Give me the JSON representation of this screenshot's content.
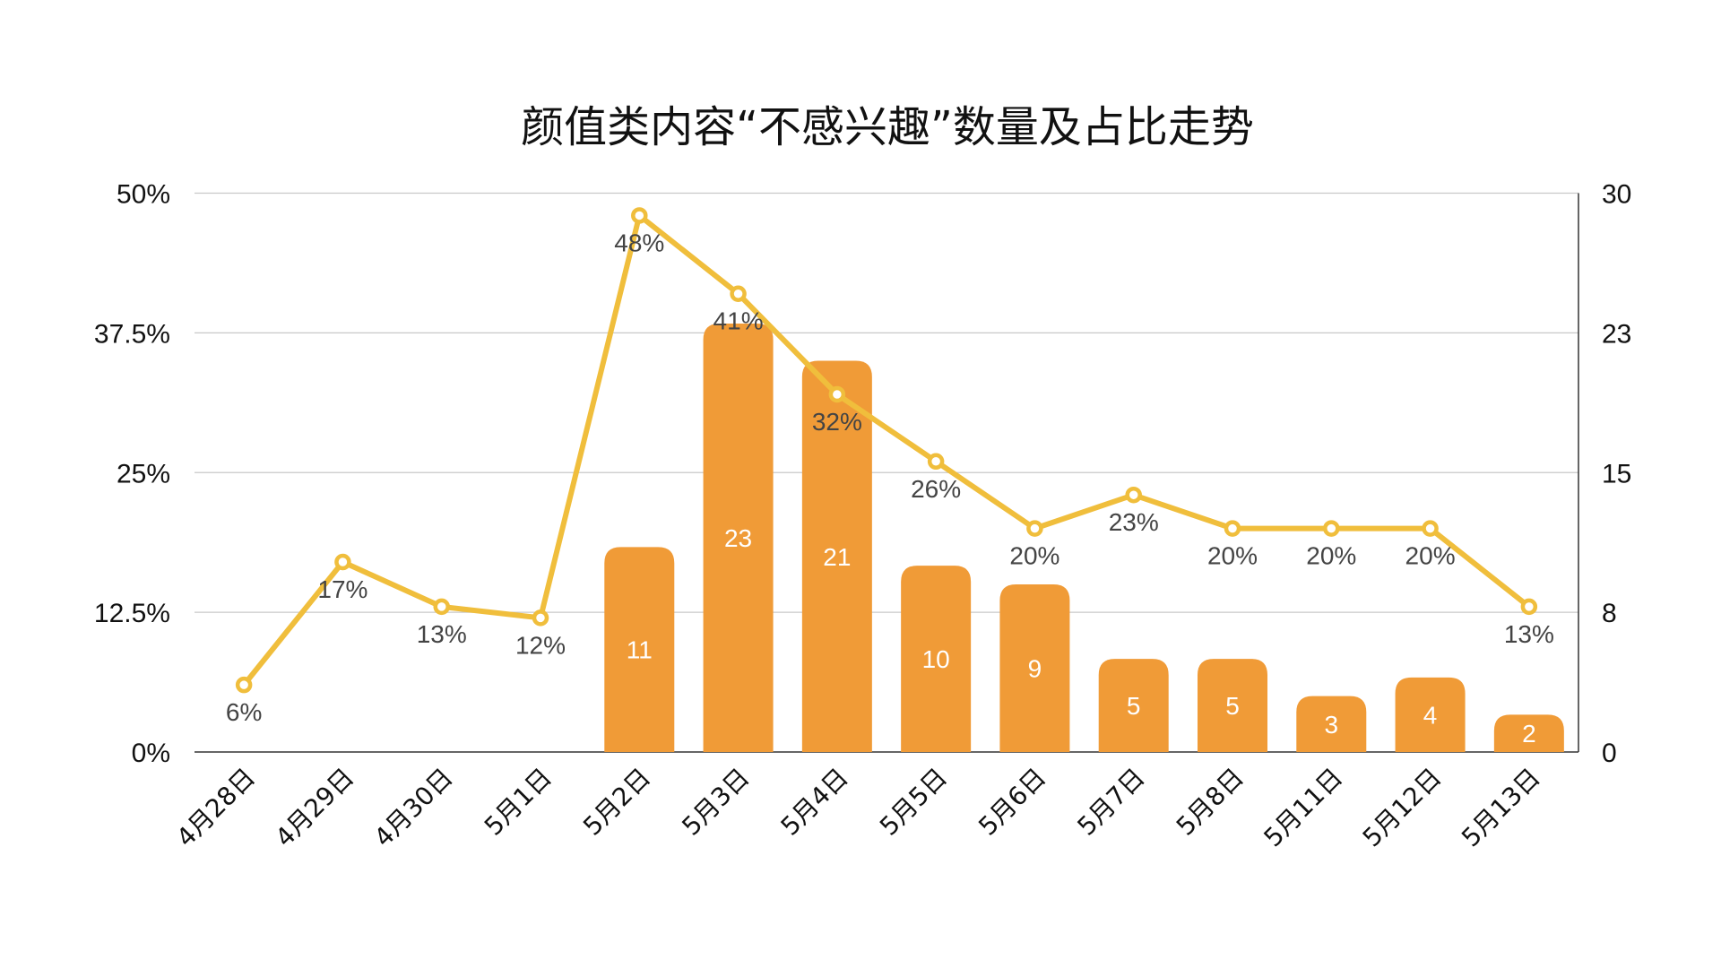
{
  "chart_data": {
    "type": "bar+line",
    "title": "颜值类内容“不感兴趣”数量及占比走势",
    "categories": [
      "4月28日",
      "4月29日",
      "4月30日",
      "5月1日",
      "5月2日",
      "5月3日",
      "5月4日",
      "5月5日",
      "5月6日",
      "5月7日",
      "5月8日",
      "5月11日",
      "5月12日",
      "5月13日"
    ],
    "series": [
      {
        "type": "bar",
        "axis": "right",
        "values": [
          0,
          0,
          0,
          0,
          11,
          23,
          21,
          10,
          9,
          5,
          5,
          3,
          4,
          2
        ],
        "labels": [
          "",
          "",
          "",
          "",
          "11",
          "23",
          "21",
          "10",
          "9",
          "5",
          "5",
          "3",
          "4",
          "2"
        ]
      },
      {
        "type": "line",
        "axis": "left",
        "values": [
          6,
          17,
          13,
          12,
          48,
          41,
          32,
          26,
          20,
          23,
          20,
          20,
          20,
          13
        ],
        "labels": [
          "6%",
          "17%",
          "13%",
          "12%",
          "48%",
          "41%",
          "32%",
          "26%",
          "20%",
          "23%",
          "20%",
          "20%",
          "20%",
          "13%"
        ]
      }
    ],
    "left_axis": {
      "ylim": [
        0,
        50
      ],
      "ticks": [
        "0%",
        "12.5%",
        "25%",
        "37.5%",
        "50%"
      ]
    },
    "right_axis": {
      "ylim": [
        0,
        30
      ],
      "ticks": [
        "0",
        "8",
        "15",
        "23",
        "30"
      ]
    },
    "grid": true,
    "colors": {
      "bar": "#F09B37",
      "line": "#F0BE3C",
      "grid": "#C8C8C8"
    }
  }
}
